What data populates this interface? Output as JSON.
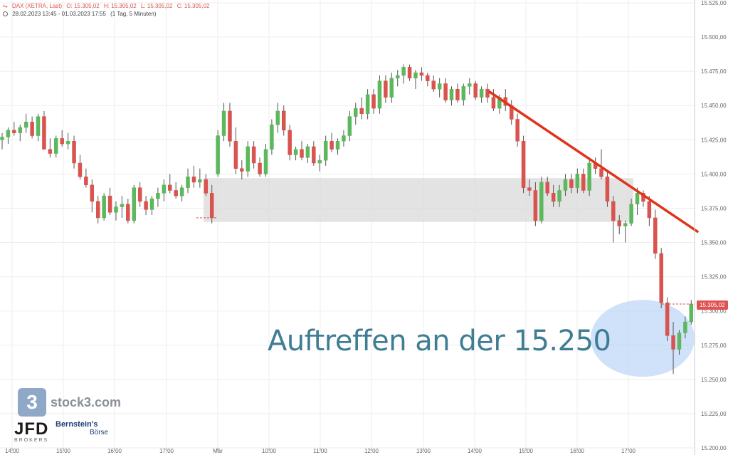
{
  "header": {
    "icon": "dax-icon",
    "instrument": "DAX (XETRA, Last)",
    "open": "O: 15.305,02",
    "high": "H: 15.305,02",
    "low": "L: 15.305,02",
    "close": "C: 15.305,02",
    "range": "28.02.2023 13:45 - 01.03.2023 17:55",
    "interval": "(1 Tag, 5 Minuten)"
  },
  "annotation_text": "Auftreffen an der 15.250",
  "last_price_label": "15.305,02",
  "logos": {
    "stock3_glyph": "3",
    "stock3_text": "stock3.com",
    "jfd_text": "JFD",
    "jfd_sub": "BROKERS",
    "bernstein_line1": "Bernstein's",
    "bernstein_line2": "Börse"
  },
  "colors": {
    "up": "#5cb85c",
    "down": "#d9534f",
    "trendline": "#e0341a",
    "zone": "#d9d9d9",
    "highlight": "#a9c8f5",
    "annotation": "#3f7d93",
    "grid": "#eeeeee"
  },
  "chart_data": {
    "type": "candlestick",
    "ylim": [
      15200,
      15525
    ],
    "y_ticks": [
      15525,
      15500,
      15475,
      15450,
      15425,
      15400,
      15375,
      15350,
      15325,
      15300,
      15275,
      15250,
      15225,
      15200
    ],
    "y_tick_labels": [
      "15.525,00",
      "15.500,00",
      "15.475,00",
      "15.450,00",
      "15.425,00",
      "15.400,00",
      "15.375,00",
      "15.350,00",
      "15.325,00",
      "15.300,00",
      "15.275,00",
      "15.250,00",
      "15.225,00",
      "15.200,00"
    ],
    "x_tick_labels": [
      "14:00",
      "15:00",
      "16:00",
      "17:00",
      "Mär",
      "10:00",
      "11:00",
      "12:00",
      "13:00",
      "14:00",
      "15:00",
      "16:00",
      "17:00"
    ],
    "zone": [
      15365,
      15397
    ],
    "trendline": [
      15460,
      15358
    ],
    "last_price": 15305.02,
    "highlight": [
      15306,
      15254
    ],
    "candles": [
      [
        15425,
        15430,
        15418,
        15427
      ],
      [
        15427,
        15434,
        15422,
        15432
      ],
      [
        15432,
        15438,
        15428,
        15430
      ],
      [
        15430,
        15436,
        15424,
        15434
      ],
      [
        15434,
        15444,
        15430,
        15438
      ],
      [
        15438,
        15442,
        15426,
        15428
      ],
      [
        15428,
        15444,
        15424,
        15442
      ],
      [
        15442,
        15446,
        15420,
        15418
      ],
      [
        15418,
        15426,
        15412,
        15415
      ],
      [
        15415,
        15428,
        15412,
        15426
      ],
      [
        15426,
        15432,
        15420,
        15422
      ],
      [
        15422,
        15430,
        15418,
        15424
      ],
      [
        15424,
        15428,
        15404,
        15408
      ],
      [
        15408,
        15414,
        15396,
        15398
      ],
      [
        15398,
        15404,
        15390,
        15392
      ],
      [
        15392,
        15396,
        15372,
        15380
      ],
      [
        15380,
        15384,
        15364,
        15368
      ],
      [
        15368,
        15386,
        15366,
        15384
      ],
      [
        15384,
        15390,
        15370,
        15372
      ],
      [
        15372,
        15380,
        15366,
        15376
      ],
      [
        15376,
        15384,
        15368,
        15378
      ],
      [
        15378,
        15382,
        15364,
        15366
      ],
      [
        15366,
        15392,
        15364,
        15390
      ],
      [
        15390,
        15394,
        15376,
        15380
      ],
      [
        15380,
        15384,
        15370,
        15374
      ],
      [
        15374,
        15384,
        15370,
        15382
      ],
      [
        15382,
        15390,
        15376,
        15386
      ],
      [
        15386,
        15396,
        15380,
        15392
      ],
      [
        15392,
        15400,
        15386,
        15388
      ],
      [
        15388,
        15394,
        15382,
        15384
      ],
      [
        15384,
        15392,
        15380,
        15390
      ],
      [
        15390,
        15404,
        15386,
        15398
      ],
      [
        15398,
        15406,
        15390,
        15394
      ],
      [
        15394,
        15404,
        15390,
        15396
      ],
      [
        15396,
        15400,
        15384,
        15386
      ],
      [
        15386,
        15392,
        15364,
        15368
      ],
      [
        15400,
        15432,
        15398,
        15428
      ],
      [
        15428,
        15452,
        15424,
        15446
      ],
      [
        15446,
        15452,
        15420,
        15424
      ],
      [
        15424,
        15434,
        15400,
        15404
      ],
      [
        15404,
        15410,
        15396,
        15402
      ],
      [
        15402,
        15424,
        15398,
        15420
      ],
      [
        15420,
        15424,
        15404,
        15408
      ],
      [
        15408,
        15412,
        15398,
        15400
      ],
      [
        15400,
        15422,
        15398,
        15418
      ],
      [
        15418,
        15440,
        15414,
        15436
      ],
      [
        15436,
        15452,
        15430,
        15446
      ],
      [
        15446,
        15450,
        15428,
        15432
      ],
      [
        15432,
        15436,
        15410,
        15414
      ],
      [
        15414,
        15420,
        15410,
        15418
      ],
      [
        15418,
        15424,
        15410,
        15412
      ],
      [
        15412,
        15422,
        15408,
        15420
      ],
      [
        15420,
        15424,
        15406,
        15408
      ],
      [
        15408,
        15414,
        15402,
        15410
      ],
      [
        15410,
        15428,
        15406,
        15424
      ],
      [
        15424,
        15430,
        15416,
        15418
      ],
      [
        15418,
        15426,
        15414,
        15424
      ],
      [
        15424,
        15432,
        15420,
        15428
      ],
      [
        15428,
        15446,
        15424,
        15442
      ],
      [
        15442,
        15452,
        15436,
        15448
      ],
      [
        15448,
        15456,
        15440,
        15444
      ],
      [
        15444,
        15462,
        15440,
        15458
      ],
      [
        15458,
        15462,
        15444,
        15448
      ],
      [
        15448,
        15472,
        15444,
        15468
      ],
      [
        15468,
        15472,
        15452,
        15456
      ],
      [
        15456,
        15474,
        15452,
        15470
      ],
      [
        15470,
        15476,
        15464,
        15472
      ],
      [
        15472,
        15480,
        15466,
        15478
      ],
      [
        15478,
        15480,
        15468,
        15470
      ],
      [
        15470,
        15476,
        15462,
        15474
      ],
      [
        15474,
        15478,
        15468,
        15472
      ],
      [
        15472,
        15474,
        15464,
        15468
      ],
      [
        15468,
        15472,
        15460,
        15462
      ],
      [
        15462,
        15470,
        15456,
        15466
      ],
      [
        15466,
        15470,
        15452,
        15454
      ],
      [
        15454,
        15464,
        15450,
        15462
      ],
      [
        15462,
        15466,
        15452,
        15454
      ],
      [
        15454,
        15466,
        15450,
        15464
      ],
      [
        15464,
        15470,
        15458,
        15466
      ],
      [
        15466,
        15468,
        15454,
        15456
      ],
      [
        15456,
        15464,
        15452,
        15462
      ],
      [
        15462,
        15466,
        15452,
        15456
      ],
      [
        15456,
        15462,
        15446,
        15448
      ],
      [
        15448,
        15458,
        15444,
        15456
      ],
      [
        15456,
        15462,
        15446,
        15450
      ],
      [
        15450,
        15454,
        15436,
        15440
      ],
      [
        15440,
        15444,
        15420,
        15424
      ],
      [
        15424,
        15428,
        15386,
        15390
      ],
      [
        15390,
        15396,
        15384,
        15388
      ],
      [
        15388,
        15394,
        15362,
        15366
      ],
      [
        15366,
        15398,
        15364,
        15394
      ],
      [
        15394,
        15398,
        15384,
        15386
      ],
      [
        15386,
        15392,
        15376,
        15380
      ],
      [
        15380,
        15392,
        15376,
        15388
      ],
      [
        15388,
        15400,
        15384,
        15396
      ],
      [
        15396,
        15400,
        15386,
        15390
      ],
      [
        15390,
        15404,
        15386,
        15400
      ],
      [
        15400,
        15404,
        15386,
        15388
      ],
      [
        15388,
        15412,
        15384,
        15408
      ],
      [
        15408,
        15412,
        15400,
        15404
      ],
      [
        15404,
        15418,
        15396,
        15398
      ],
      [
        15398,
        15402,
        15376,
        15380
      ],
      [
        15380,
        15384,
        15350,
        15366
      ],
      [
        15366,
        15370,
        15356,
        15362
      ],
      [
        15362,
        15366,
        15350,
        15364
      ],
      [
        15364,
        15382,
        15362,
        15378
      ],
      [
        15378,
        15390,
        15370,
        15386
      ],
      [
        15386,
        15388,
        15376,
        15380
      ],
      [
        15380,
        15384,
        15362,
        15368
      ],
      [
        15368,
        15374,
        15338,
        15342
      ],
      [
        15342,
        15346,
        15302,
        15306
      ],
      [
        15306,
        15310,
        15278,
        15282
      ],
      [
        15282,
        15292,
        15254,
        15272
      ],
      [
        15272,
        15286,
        15268,
        15284
      ],
      [
        15284,
        15296,
        15280,
        15292
      ],
      [
        15292,
        15308,
        15290,
        15305
      ]
    ]
  }
}
